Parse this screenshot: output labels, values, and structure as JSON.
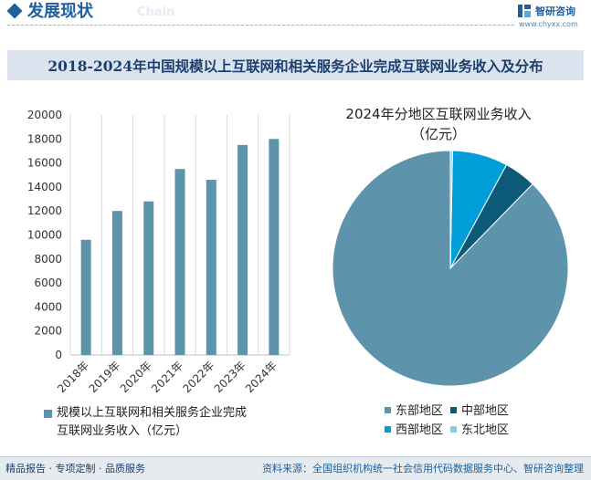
{
  "header": {
    "title": "发展现状",
    "title_en": "Chain",
    "logo_name": "智研咨询",
    "logo_url": "www.chyxx.com"
  },
  "main_title": "2018-2024年中国规模以上互联网和相关服务企业完成互联网业务收入及分布",
  "footer": {
    "left": "精品报告 · 专项定制 · 品质服务",
    "right": "资料来源：全国组织机构统一社会信用代码数据服务中心、智研咨询整理"
  },
  "colors": {
    "bar": "#5e94ab",
    "brand": "#1f5f9b",
    "title_band": "#dbe4ee"
  },
  "chart_data": [
    {
      "type": "bar",
      "categories": [
        "2018年",
        "2019年",
        "2020年",
        "2021年",
        "2022年",
        "2023年",
        "2024年"
      ],
      "series": [
        {
          "name": "规模以上互联网和相关服务企业完成互联网业务收入（亿元）",
          "values": [
            9600,
            12000,
            12800,
            15500,
            14600,
            17500,
            18000
          ]
        }
      ],
      "ylim": [
        0,
        20000
      ],
      "yticks": [
        0,
        2000,
        4000,
        6000,
        8000,
        10000,
        12000,
        14000,
        16000,
        18000,
        20000
      ],
      "legend_line1": "规模以上互联网和相关服务企业完成",
      "legend_line2": "互联网业务收入（亿元）",
      "grid": "vertical",
      "legend_position": "bottom"
    },
    {
      "type": "pie",
      "title": "2024年分地区互联网业务收入（亿元）",
      "title_line1": "2024年分地区互联网业务收入",
      "title_line2": "（亿元）",
      "labels": [
        "东部地区",
        "中部地区",
        "西部地区",
        "东北地区"
      ],
      "values": [
        87.7,
        4.4,
        7.6,
        0.3
      ],
      "colors": [
        "#5e94ab",
        "#0c5a78",
        "#009ed9",
        "#7fd0f0"
      ],
      "legend_position": "bottom"
    }
  ]
}
